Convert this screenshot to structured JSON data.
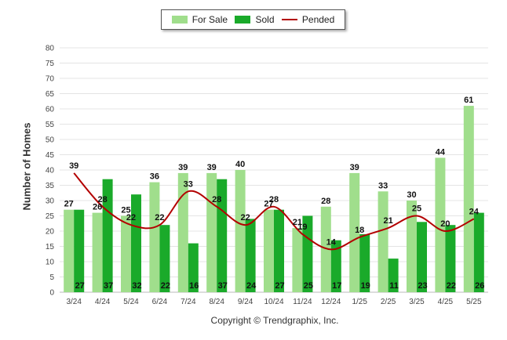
{
  "legend": {
    "for_sale": "For Sale",
    "sold": "Sold",
    "pended": "Pended"
  },
  "copyright": "Copyright © Trendgraphix, Inc.",
  "colors": {
    "for_sale": "#a0de8c",
    "sold": "#1aaa2a",
    "pended": "#b30000"
  },
  "chart_data": {
    "type": "bar",
    "categories": [
      "3/24",
      "4/24",
      "5/24",
      "6/24",
      "7/24",
      "8/24",
      "9/24",
      "10/24",
      "11/24",
      "12/24",
      "1/25",
      "2/25",
      "3/25",
      "4/25",
      "5/25"
    ],
    "series": [
      {
        "name": "For Sale",
        "type": "bar",
        "values": [
          27,
          26,
          25,
          36,
          39,
          39,
          40,
          27,
          21,
          28,
          39,
          33,
          30,
          44,
          61
        ]
      },
      {
        "name": "Sold",
        "type": "bar",
        "values": [
          27,
          37,
          32,
          22,
          16,
          37,
          24,
          27,
          25,
          17,
          19,
          11,
          23,
          22,
          26
        ]
      },
      {
        "name": "Pended",
        "type": "line",
        "values": [
          39,
          28,
          22,
          22,
          33,
          28,
          22,
          28,
          19,
          14,
          18,
          21,
          25,
          20,
          24
        ]
      }
    ],
    "ylabel": "Number of Homes",
    "xlabel": "",
    "ylim": [
      0,
      80
    ],
    "yticks": [
      0,
      5,
      10,
      15,
      20,
      25,
      30,
      35,
      40,
      45,
      50,
      55,
      60,
      65,
      70,
      75,
      80
    ],
    "grid": true,
    "legend_position": "top"
  }
}
